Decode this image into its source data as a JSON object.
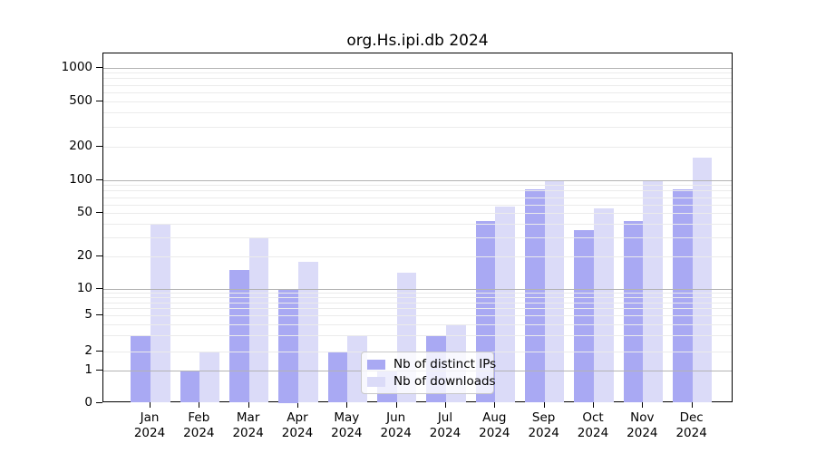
{
  "chart_data": {
    "type": "bar",
    "title": "org.Hs.ipi.db 2024",
    "categories": [
      "Jan",
      "Feb",
      "Mar",
      "Apr",
      "May",
      "Jun",
      "Jul",
      "Aug",
      "Sep",
      "Oct",
      "Nov",
      "Dec"
    ],
    "x_year_label": "2024",
    "series": [
      {
        "name": "Nb of distinct IPs",
        "color": "#a9a9f3",
        "values": [
          3,
          1,
          15,
          10,
          2,
          1,
          3,
          42,
          82,
          35,
          42,
          82
        ]
      },
      {
        "name": "Nb of downloads",
        "color": "#dbdbf8",
        "values": [
          40,
          2,
          30,
          18,
          3,
          14,
          4,
          57,
          100,
          55,
          100,
          160
        ]
      }
    ],
    "y_ticks": [
      0,
      1,
      2,
      5,
      10,
      20,
      50,
      100,
      200,
      500,
      1000
    ],
    "ylim": [
      0,
      1000
    ],
    "y_scale": "log-like",
    "xlabel": "",
    "ylabel": "",
    "grid": true,
    "legend_position": "inside-bottom-center",
    "colors": {
      "major_grid": "#b3b3b3",
      "minor_grid": "#ebebeb",
      "axis": "#000000",
      "legend_border": "#c8c8c8",
      "text": "#000000"
    }
  }
}
